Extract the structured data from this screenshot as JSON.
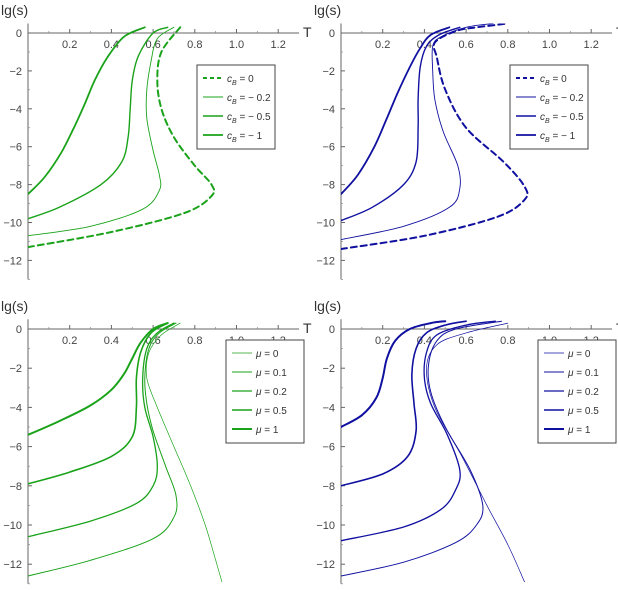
{
  "chart_data": [
    {
      "type": "line",
      "xlabel": "T",
      "ylabel": "lg(s)",
      "xlim": [
        0,
        1.3
      ],
      "ylim": [
        -13,
        0.5
      ],
      "xticks": [
        "0.2",
        "0.4",
        "0.6",
        "0.8",
        "1.0",
        "1.2"
      ],
      "yticks": [
        "0",
        "-2",
        "-4",
        "-6",
        "-8",
        "-10",
        "-12"
      ],
      "legend_position": "right",
      "color": "#1aa31a",
      "series": [
        {
          "name": "c_B = 0",
          "legend": {
            "sym": "c",
            "sub": "B",
            "val": " = 0"
          },
          "dash": true,
          "width": 2.0,
          "points": [
            [
              0.0,
              -11.3
            ],
            [
              0.4,
              -10.5
            ],
            [
              0.75,
              -9.5
            ],
            [
              0.88,
              -8.6
            ],
            [
              0.88,
              -8.0
            ],
            [
              0.8,
              -7.0
            ],
            [
              0.7,
              -5.5
            ],
            [
              0.64,
              -4.0
            ],
            [
              0.62,
              -2.5
            ],
            [
              0.64,
              -1.0
            ],
            [
              0.73,
              0.3
            ]
          ]
        },
        {
          "name": "c_B = -0.2",
          "legend": {
            "sym": "c",
            "sub": "B",
            "val": " = − 0.2"
          },
          "dash": false,
          "width": 0.9,
          "points": [
            [
              0.0,
              -10.7
            ],
            [
              0.3,
              -10.2
            ],
            [
              0.55,
              -9.3
            ],
            [
              0.63,
              -8.3
            ],
            [
              0.63,
              -7.5
            ],
            [
              0.6,
              -6.2
            ],
            [
              0.57,
              -4.5
            ],
            [
              0.57,
              -3.0
            ],
            [
              0.59,
              -1.5
            ],
            [
              0.62,
              -0.3
            ],
            [
              0.7,
              0.3
            ]
          ]
        },
        {
          "name": "c_B = -0.5",
          "legend": {
            "sym": "c",
            "sub": "B",
            "val": " = − 0.5"
          },
          "dash": false,
          "width": 1.4,
          "points": [
            [
              0.0,
              -9.8
            ],
            [
              0.15,
              -9.2
            ],
            [
              0.35,
              -8.0
            ],
            [
              0.45,
              -6.8
            ],
            [
              0.48,
              -5.5
            ],
            [
              0.49,
              -4.0
            ],
            [
              0.5,
              -2.5
            ],
            [
              0.53,
              -1.2
            ],
            [
              0.6,
              0.0
            ],
            [
              0.67,
              0.3
            ]
          ]
        },
        {
          "name": "c_B = -1",
          "legend": {
            "sym": "c",
            "sub": "B",
            "val": " = − 1"
          },
          "dash": false,
          "width": 1.8,
          "points": [
            [
              0.0,
              -8.5
            ],
            [
              0.08,
              -7.6
            ],
            [
              0.16,
              -6.3
            ],
            [
              0.22,
              -5.0
            ],
            [
              0.27,
              -3.8
            ],
            [
              0.32,
              -2.5
            ],
            [
              0.38,
              -1.3
            ],
            [
              0.46,
              -0.2
            ],
            [
              0.56,
              0.3
            ]
          ]
        }
      ]
    },
    {
      "type": "line",
      "xlabel": "T",
      "ylabel": "lg(s)",
      "xlim": [
        0,
        1.3
      ],
      "ylim": [
        -13,
        0.5
      ],
      "xticks": [
        "0.2",
        "0.4",
        "0.6",
        "0.8",
        "1.0",
        "1.2"
      ],
      "yticks": [
        "0",
        "-2",
        "-4",
        "-6",
        "-8",
        "-10",
        "-12"
      ],
      "legend_position": "right",
      "color": "#1010a0",
      "series": [
        {
          "name": "c_B = 0",
          "legend": {
            "sym": "c",
            "sub": "B",
            "val": " = 0"
          },
          "dash": true,
          "width": 2.0,
          "points": [
            [
              0.0,
              -11.4
            ],
            [
              0.4,
              -10.7
            ],
            [
              0.75,
              -9.7
            ],
            [
              0.88,
              -8.8
            ],
            [
              0.88,
              -8.1
            ],
            [
              0.78,
              -6.8
            ],
            [
              0.6,
              -5.0
            ],
            [
              0.5,
              -3.0
            ],
            [
              0.46,
              -1.3
            ],
            [
              0.45,
              -0.5
            ],
            [
              0.55,
              0.1
            ],
            [
              0.65,
              0.3
            ],
            [
              0.8,
              0.5
            ]
          ]
        },
        {
          "name": "c_B = -0.2",
          "legend": {
            "sym": "c",
            "sub": "B",
            "val": " = − 0.2"
          },
          "dash": false,
          "width": 0.9,
          "points": [
            [
              0.0,
              -10.9
            ],
            [
              0.3,
              -10.2
            ],
            [
              0.52,
              -9.2
            ],
            [
              0.57,
              -8.2
            ],
            [
              0.56,
              -7.0
            ],
            [
              0.49,
              -5.2
            ],
            [
              0.45,
              -3.5
            ],
            [
              0.44,
              -2.0
            ],
            [
              0.44,
              -0.7
            ],
            [
              0.48,
              -0.2
            ],
            [
              0.6,
              0.3
            ],
            [
              0.73,
              0.5
            ]
          ]
        },
        {
          "name": "c_B = -0.5",
          "legend": {
            "sym": "c",
            "sub": "B",
            "val": " = − 0.5"
          },
          "dash": false,
          "width": 1.4,
          "points": [
            [
              0.0,
              -9.9
            ],
            [
              0.15,
              -9.2
            ],
            [
              0.3,
              -8.0
            ],
            [
              0.36,
              -6.8
            ],
            [
              0.37,
              -5.0
            ],
            [
              0.37,
              -3.5
            ],
            [
              0.38,
              -1.8
            ],
            [
              0.41,
              -0.7
            ],
            [
              0.47,
              -0.1
            ],
            [
              0.57,
              0.3
            ]
          ]
        },
        {
          "name": "c_B = -1",
          "legend": {
            "sym": "c",
            "sub": "B",
            "val": " = − 1"
          },
          "dash": false,
          "width": 1.8,
          "points": [
            [
              0.0,
              -8.5
            ],
            [
              0.08,
              -7.5
            ],
            [
              0.16,
              -6.0
            ],
            [
              0.22,
              -4.5
            ],
            [
              0.27,
              -3.2
            ],
            [
              0.33,
              -1.8
            ],
            [
              0.38,
              -0.8
            ],
            [
              0.43,
              -0.1
            ],
            [
              0.52,
              0.3
            ]
          ]
        }
      ]
    },
    {
      "type": "line",
      "xlabel": "T",
      "ylabel": "lg(s)",
      "xlim": [
        0,
        1.3
      ],
      "ylim": [
        -13,
        0.5
      ],
      "xticks": [
        "0.2",
        "0.4",
        "0.6",
        "0.8",
        "1.0",
        "1.2"
      ],
      "yticks": [
        "0",
        "-2",
        "-4",
        "-6",
        "-8",
        "-10",
        "-12"
      ],
      "legend_position": "right",
      "color": "#1aa31a",
      "series": [
        {
          "name": "μ = 0",
          "legend": {
            "sym": "μ",
            "sub": "",
            "val": " = 0"
          },
          "dash": false,
          "width": 0.7,
          "points": [
            [
              0.73,
              0.3
            ],
            [
              0.64,
              -0.3
            ],
            [
              0.58,
              -1.2
            ],
            [
              0.57,
              -2.5
            ],
            [
              0.62,
              -4.0
            ],
            [
              0.7,
              -6.0
            ],
            [
              0.78,
              -8.0
            ],
            [
              0.85,
              -10.0
            ],
            [
              0.9,
              -11.8
            ],
            [
              0.93,
              -12.9
            ]
          ]
        },
        {
          "name": "μ = 0.1",
          "legend": {
            "sym": "μ",
            "sub": "",
            "val": " = 0.1"
          },
          "dash": false,
          "width": 1.0,
          "points": [
            [
              0.0,
              -12.6
            ],
            [
              0.3,
              -11.8
            ],
            [
              0.6,
              -10.7
            ],
            [
              0.7,
              -9.6
            ],
            [
              0.71,
              -8.5
            ],
            [
              0.66,
              -7.0
            ],
            [
              0.6,
              -5.2
            ],
            [
              0.57,
              -3.8
            ],
            [
              0.56,
              -2.5
            ],
            [
              0.58,
              -1.0
            ],
            [
              0.63,
              -0.2
            ],
            [
              0.71,
              0.3
            ]
          ]
        },
        {
          "name": "μ = 0.2",
          "legend": {
            "sym": "μ",
            "sub": "",
            "val": " = 0.2"
          },
          "dash": false,
          "width": 1.3,
          "points": [
            [
              0.0,
              -10.6
            ],
            [
              0.3,
              -9.8
            ],
            [
              0.52,
              -8.9
            ],
            [
              0.6,
              -8.0
            ],
            [
              0.62,
              -7.0
            ],
            [
              0.6,
              -5.5
            ],
            [
              0.56,
              -4.0
            ],
            [
              0.55,
              -2.5
            ],
            [
              0.57,
              -1.0
            ],
            [
              0.62,
              -0.2
            ],
            [
              0.7,
              0.3
            ]
          ]
        },
        {
          "name": "μ = 0.5",
          "legend": {
            "sym": "μ",
            "sub": "",
            "val": " = 0.5"
          },
          "dash": false,
          "width": 1.6,
          "points": [
            [
              0.0,
              -7.9
            ],
            [
              0.2,
              -7.3
            ],
            [
              0.4,
              -6.5
            ],
            [
              0.5,
              -5.5
            ],
            [
              0.52,
              -4.0
            ],
            [
              0.52,
              -2.5
            ],
            [
              0.54,
              -1.2
            ],
            [
              0.59,
              -0.2
            ],
            [
              0.67,
              0.3
            ]
          ]
        },
        {
          "name": "μ = 1",
          "legend": {
            "sym": "μ",
            "sub": "",
            "val": " = 1"
          },
          "dash": false,
          "width": 2.0,
          "points": [
            [
              0.0,
              -5.4
            ],
            [
              0.15,
              -4.7
            ],
            [
              0.3,
              -3.9
            ],
            [
              0.4,
              -3.1
            ],
            [
              0.46,
              -2.3
            ],
            [
              0.5,
              -1.5
            ],
            [
              0.54,
              -0.7
            ],
            [
              0.6,
              0.0
            ],
            [
              0.67,
              0.3
            ]
          ]
        }
      ]
    },
    {
      "type": "line",
      "xlabel": "T",
      "ylabel": "lg(s)",
      "xlim": [
        0,
        1.3
      ],
      "ylim": [
        -13,
        0.5
      ],
      "xticks": [
        "0.2",
        "0.4",
        "0.6",
        "0.8",
        "1.0",
        "1.2"
      ],
      "yticks": [
        "0",
        "-2",
        "-4",
        "-6",
        "-8",
        "-10",
        "-12"
      ],
      "legend_position": "right",
      "color": "#1010a0",
      "series": [
        {
          "name": "μ = 0",
          "legend": {
            "sym": "μ",
            "sub": "",
            "val": " = 0"
          },
          "dash": false,
          "width": 0.7,
          "points": [
            [
              0.8,
              0.3
            ],
            [
              0.6,
              -0.2
            ],
            [
              0.46,
              -0.8
            ],
            [
              0.41,
              -2.0
            ],
            [
              0.45,
              -4.0
            ],
            [
              0.58,
              -6.5
            ],
            [
              0.7,
              -9.0
            ],
            [
              0.8,
              -11.0
            ],
            [
              0.88,
              -12.9
            ]
          ]
        },
        {
          "name": "μ = 0.1",
          "legend": {
            "sym": "μ",
            "sub": "",
            "val": " = 0.1"
          },
          "dash": false,
          "width": 1.0,
          "points": [
            [
              0.0,
              -12.6
            ],
            [
              0.3,
              -11.9
            ],
            [
              0.55,
              -10.9
            ],
            [
              0.65,
              -10.0
            ],
            [
              0.68,
              -9.0
            ],
            [
              0.62,
              -7.2
            ],
            [
              0.5,
              -5.0
            ],
            [
              0.43,
              -3.2
            ],
            [
              0.42,
              -1.8
            ],
            [
              0.46,
              -0.6
            ],
            [
              0.55,
              0.0
            ],
            [
              0.77,
              0.4
            ]
          ]
        },
        {
          "name": "μ = 0.2",
          "legend": {
            "sym": "μ",
            "sub": "",
            "val": " = 0.2"
          },
          "dash": false,
          "width": 1.3,
          "points": [
            [
              0.0,
              -10.8
            ],
            [
              0.3,
              -10.1
            ],
            [
              0.48,
              -9.2
            ],
            [
              0.55,
              -8.2
            ],
            [
              0.57,
              -7.2
            ],
            [
              0.51,
              -5.4
            ],
            [
              0.43,
              -3.8
            ],
            [
              0.4,
              -2.5
            ],
            [
              0.41,
              -1.2
            ],
            [
              0.46,
              -0.3
            ],
            [
              0.6,
              0.2
            ],
            [
              0.74,
              0.4
            ]
          ]
        },
        {
          "name": "μ = 0.5",
          "legend": {
            "sym": "μ",
            "sub": "",
            "val": " = 0.5"
          },
          "dash": false,
          "width": 1.6,
          "points": [
            [
              0.0,
              -8.0
            ],
            [
              0.2,
              -7.4
            ],
            [
              0.32,
              -6.5
            ],
            [
              0.36,
              -5.2
            ],
            [
              0.35,
              -3.8
            ],
            [
              0.34,
              -2.3
            ],
            [
              0.36,
              -1.0
            ],
            [
              0.41,
              -0.2
            ],
            [
              0.5,
              0.2
            ],
            [
              0.6,
              0.4
            ]
          ]
        },
        {
          "name": "μ = 1",
          "legend": {
            "sym": "μ",
            "sub": "",
            "val": " = 1"
          },
          "dash": false,
          "width": 2.0,
          "points": [
            [
              0.0,
              -5.0
            ],
            [
              0.1,
              -4.4
            ],
            [
              0.17,
              -3.5
            ],
            [
              0.2,
              -2.5
            ],
            [
              0.22,
              -1.5
            ],
            [
              0.26,
              -0.6
            ],
            [
              0.33,
              0.0
            ],
            [
              0.43,
              0.3
            ],
            [
              0.5,
              0.4
            ]
          ]
        }
      ]
    }
  ]
}
